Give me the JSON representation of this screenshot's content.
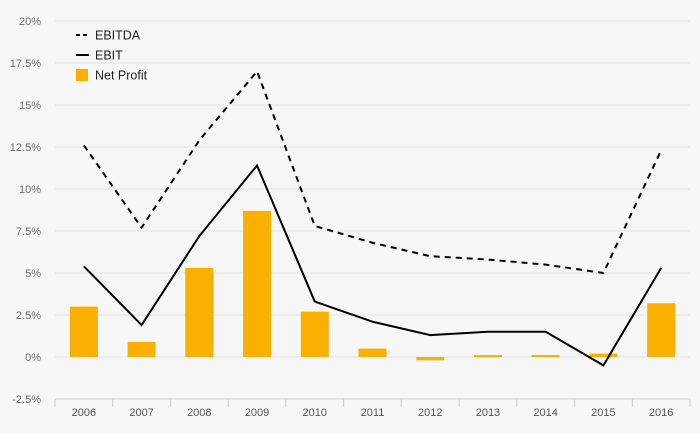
{
  "chart_data": {
    "type": "bar",
    "categories": [
      "2006",
      "2007",
      "2008",
      "2009",
      "2010",
      "2011",
      "2012",
      "2013",
      "2014",
      "2015",
      "2016"
    ],
    "y_ticks": [
      "-2.5%",
      "0%",
      "2.5%",
      "5%",
      "7.5%",
      "10%",
      "12.5%",
      "15%",
      "17.5%",
      "20%"
    ],
    "ylim": [
      -2.5,
      20
    ],
    "unit": "%",
    "grid": true,
    "legend_position": "top-left",
    "series": [
      {
        "name": "EBITDA",
        "kind": "line",
        "style": "dashed",
        "color": "#000000",
        "values": [
          12.6,
          7.7,
          12.9,
          17.0,
          7.8,
          6.8,
          6.0,
          5.8,
          5.5,
          5.0,
          12.3
        ]
      },
      {
        "name": "EBIT",
        "kind": "line",
        "style": "solid",
        "color": "#000000",
        "values": [
          5.4,
          1.9,
          7.2,
          11.4,
          3.3,
          2.1,
          1.3,
          1.5,
          1.5,
          -0.5,
          5.3
        ]
      },
      {
        "name": "Net Profit",
        "kind": "bar",
        "color": "#f9b000",
        "values": [
          3.0,
          0.9,
          5.3,
          8.7,
          2.7,
          0.5,
          -0.2,
          0.1,
          0.05,
          0.2,
          3.2
        ]
      }
    ]
  }
}
